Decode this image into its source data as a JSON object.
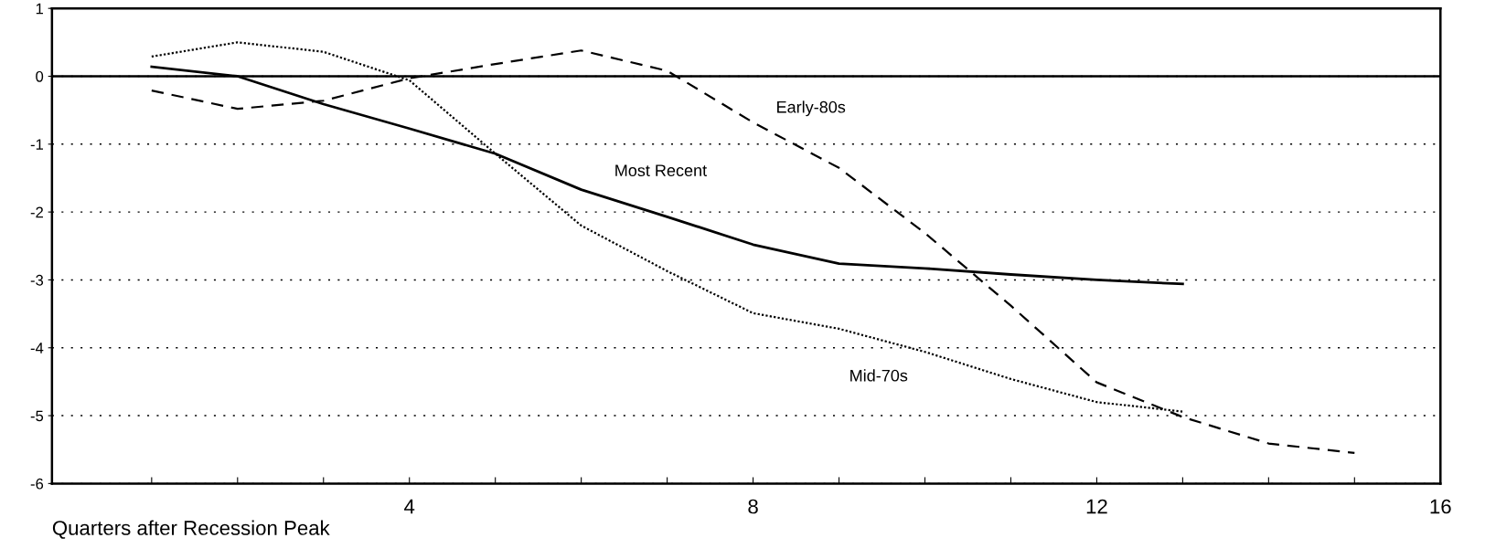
{
  "chart_data": {
    "type": "line",
    "xlabel": "Quarters after Recession Peak",
    "x": [
      1,
      2,
      3,
      4,
      5,
      6,
      7,
      8,
      9,
      10,
      11,
      12,
      13,
      14,
      15
    ],
    "series": [
      {
        "name": "Most Recent",
        "color": "#000000",
        "line_style": "solid",
        "values": [
          0.14,
          0,
          -0.41,
          -0.77,
          -1.14,
          -1.67,
          -2.07,
          -2.48,
          -2.76,
          -2.83,
          -2.92,
          -3.0,
          -3.06,
          null,
          null
        ]
      },
      {
        "name": "Mid-70s",
        "color": "#000000",
        "line_style": "dotted",
        "values": [
          0.29,
          0.5,
          0.36,
          -0.06,
          -1.14,
          -2.2,
          -2.87,
          -3.49,
          -3.72,
          -4.06,
          -4.46,
          -4.8,
          -4.94,
          null,
          null
        ]
      },
      {
        "name": "Early-80s",
        "color": "#000000",
        "line_style": "dashed",
        "values": [
          -0.21,
          -0.48,
          -0.36,
          -0.03,
          0.18,
          0.38,
          0.08,
          -0.68,
          -1.35,
          -2.31,
          -3.38,
          -4.51,
          -5.02,
          -5.41,
          -5.55
        ]
      }
    ],
    "xlim": [
      -0.16,
      16
    ],
    "ylim": [
      -6,
      1
    ],
    "xticks": [
      {
        "value": 1,
        "label": null
      },
      {
        "value": 2,
        "label": null
      },
      {
        "value": 3,
        "label": null
      },
      4,
      {
        "value": 5,
        "label": null
      },
      {
        "value": 6,
        "label": null
      },
      {
        "value": 7,
        "label": null
      },
      8,
      {
        "value": 9,
        "label": null
      },
      {
        "value": 10,
        "label": null
      },
      {
        "value": 11,
        "label": null
      },
      12,
      {
        "value": 13,
        "label": null
      },
      {
        "value": 14,
        "label": null
      },
      {
        "value": 15,
        "label": null
      },
      16
    ],
    "yticks": [
      -6,
      -5,
      -4,
      -3,
      -2,
      -1,
      0,
      1
    ],
    "ref_lines": [
      {
        "axis": "y",
        "value": 0,
        "color": "#000000",
        "line_style": "solid"
      }
    ],
    "grid": "y",
    "legend": false
  }
}
